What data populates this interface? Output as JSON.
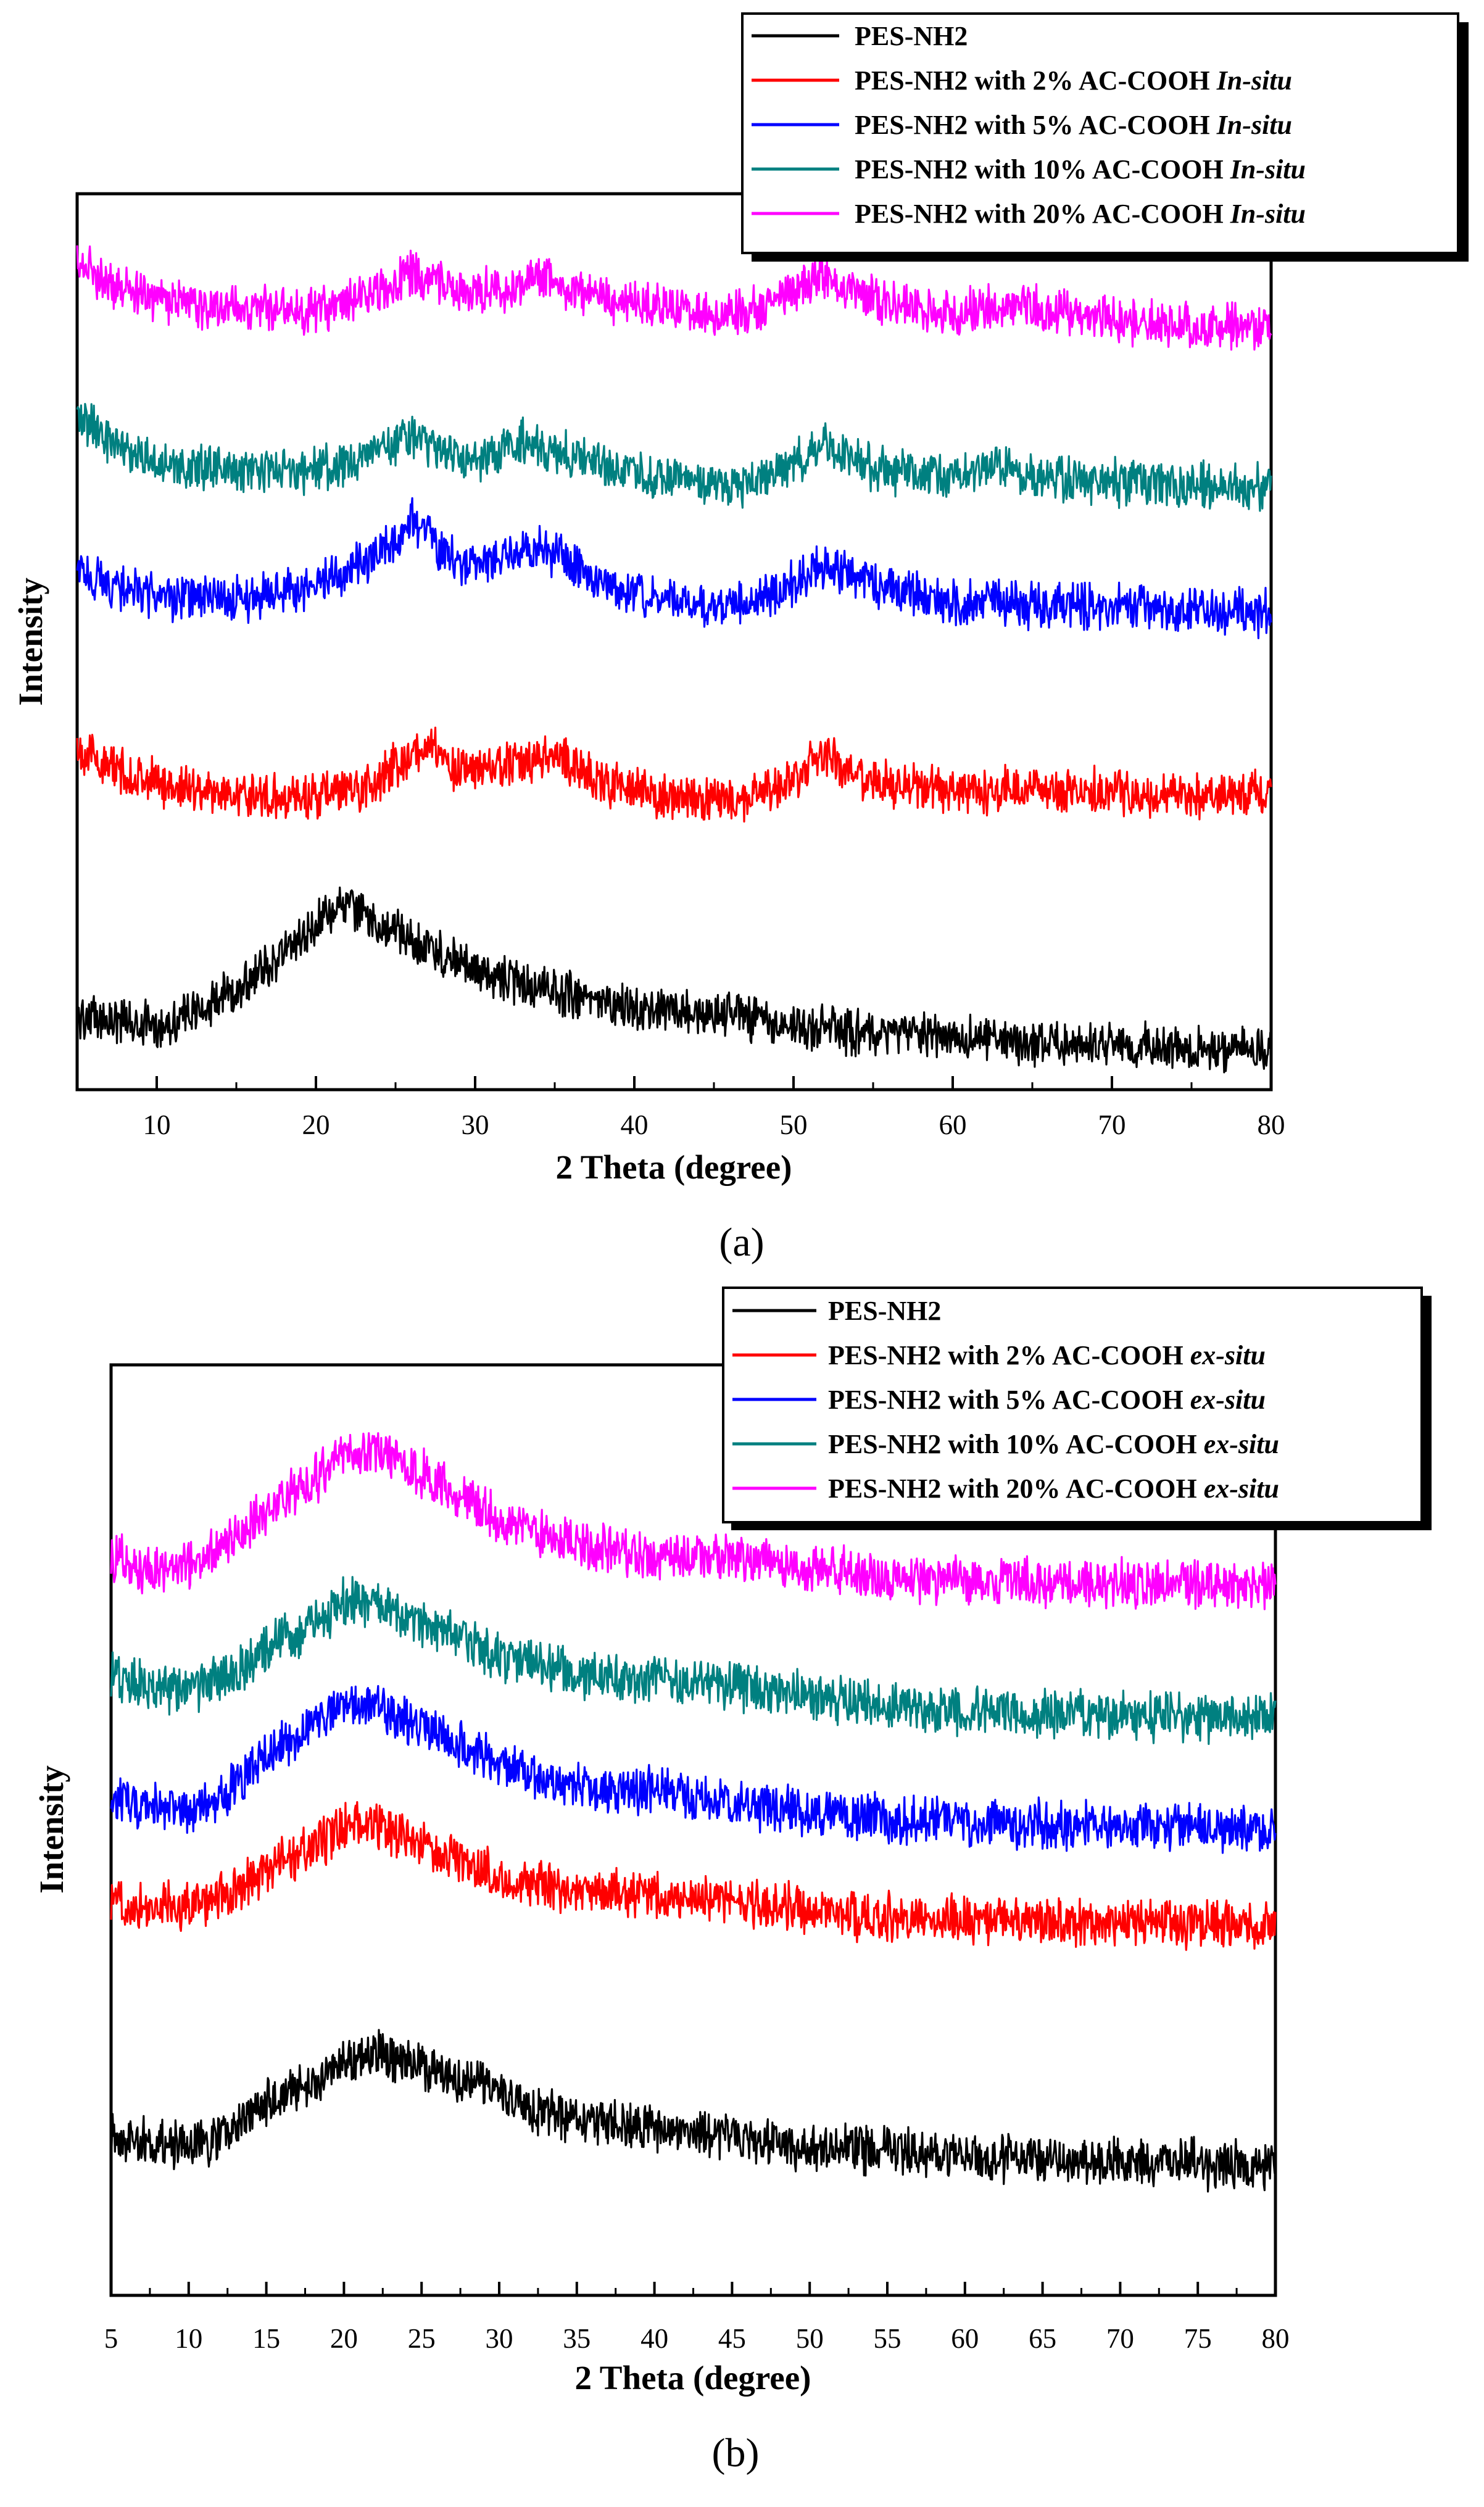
{
  "chart_data": [
    {
      "panel": "a",
      "type": "line",
      "caption": "(a)",
      "xlabel": "2 Theta (degree)",
      "ylabel": "Intensity",
      "xlim": [
        5,
        80
      ],
      "xticks": [
        10,
        20,
        30,
        40,
        50,
        60,
        70,
        80
      ],
      "yticks_shown": false,
      "legend_position": "top-right",
      "legend_style": "italic-suffix",
      "series": [
        {
          "name": "PES-NH2",
          "suffix": "",
          "color": "#000000",
          "x": [
            5,
            7,
            10,
            13,
            16,
            19,
            21,
            22,
            24,
            27,
            30,
            33,
            36,
            40,
            45,
            50,
            55,
            60,
            65,
            70,
            75,
            80
          ],
          "y": [
            0.42,
            0.38,
            0.33,
            0.48,
            0.75,
            1.12,
            1.38,
            1.42,
            1.24,
            1.03,
            0.82,
            0.7,
            0.6,
            0.5,
            0.45,
            0.33,
            0.26,
            0.22,
            0.18,
            0.14,
            0.13,
            0.12
          ]
        },
        {
          "name": "PES-NH2 with 2% AC-COOH ",
          "suffix": "In-situ",
          "color": "#ff0000",
          "x": [
            5,
            7,
            10,
            15,
            18,
            20,
            23,
            25,
            27,
            29,
            31,
            33,
            35,
            38,
            42,
            47,
            50,
            52,
            54,
            57,
            60,
            65,
            70,
            75,
            80
          ],
          "y": [
            2.85,
            2.66,
            2.52,
            2.42,
            2.4,
            2.4,
            2.47,
            2.68,
            2.86,
            2.62,
            2.66,
            2.72,
            2.78,
            2.52,
            2.4,
            2.36,
            2.55,
            2.78,
            2.58,
            2.48,
            2.47,
            2.46,
            2.45,
            2.42,
            2.42
          ]
        },
        {
          "name": "PES-NH2 with 5% AC-COOH ",
          "suffix": "In-situ",
          "color": "#0000ff",
          "x": [
            5,
            7,
            10,
            15,
            20,
            23,
            25,
            26,
            28,
            30,
            33,
            35,
            38,
            42,
            46,
            50,
            52,
            55,
            60,
            65,
            70,
            75,
            80
          ],
          "y": [
            4.45,
            4.32,
            4.2,
            4.18,
            4.32,
            4.5,
            4.72,
            4.92,
            4.62,
            4.48,
            4.66,
            4.6,
            4.32,
            4.18,
            4.1,
            4.32,
            4.5,
            4.32,
            4.15,
            4.14,
            4.12,
            4.08,
            4.06
          ]
        },
        {
          "name": "PES-NH2 with 10% AC-COOH ",
          "suffix": "In-situ",
          "color": "#008080",
          "x": [
            5,
            7,
            10,
            15,
            20,
            24,
            26,
            28,
            30,
            33,
            35,
            38,
            42,
            47,
            50,
            52,
            55,
            60,
            63,
            66,
            70,
            75,
            80
          ],
          "y": [
            5.85,
            5.62,
            5.42,
            5.35,
            5.35,
            5.52,
            5.66,
            5.55,
            5.42,
            5.62,
            5.52,
            5.38,
            5.28,
            5.22,
            5.42,
            5.58,
            5.36,
            5.28,
            5.36,
            5.28,
            5.24,
            5.22,
            5.2
          ]
        },
        {
          "name": "PES-NH2 with 20% AC-COOH ",
          "suffix": "In-situ",
          "color": "#ff00ff",
          "x": [
            5,
            7,
            10,
            15,
            20,
            23,
            26,
            28,
            30,
            32,
            34,
            36,
            40,
            45,
            48,
            50,
            52,
            55,
            60,
            64,
            68,
            72,
            76,
            80
          ],
          "y": [
            7.28,
            7.02,
            6.9,
            6.8,
            6.8,
            6.92,
            7.12,
            7.05,
            6.95,
            7.0,
            7.1,
            6.95,
            6.85,
            6.76,
            6.82,
            6.98,
            7.1,
            6.9,
            6.78,
            6.85,
            6.74,
            6.68,
            6.66,
            6.62
          ]
        }
      ]
    },
    {
      "panel": "b",
      "type": "line",
      "caption": "(b)",
      "xlabel": "2 Theta (degree)",
      "ylabel": "Intensity",
      "xlim": [
        5,
        80
      ],
      "xticks": [
        5,
        10,
        15,
        20,
        25,
        30,
        35,
        40,
        45,
        50,
        55,
        60,
        65,
        70,
        75,
        80
      ],
      "yticks_shown": false,
      "legend_position": "top-right",
      "legend_style": "italic-suffix",
      "series": [
        {
          "name": "PES-NH2",
          "suffix": "",
          "color": "#000000",
          "x": [
            5,
            7,
            10,
            13,
            15,
            18,
            20,
            22,
            24,
            27,
            30,
            33,
            36,
            40,
            45,
            50,
            55,
            60,
            65,
            70,
            75,
            80
          ],
          "y": [
            0.32,
            0.28,
            0.22,
            0.38,
            0.6,
            0.75,
            0.95,
            1.05,
            0.95,
            0.82,
            0.68,
            0.52,
            0.45,
            0.38,
            0.32,
            0.22,
            0.18,
            0.14,
            0.12,
            0.1,
            0.08,
            0.06
          ]
        },
        {
          "name": "PES-NH2 with 2% AC-COOH ",
          "suffix": "ex-situ",
          "color": "#ff0000",
          "x": [
            5,
            7,
            10,
            13,
            15,
            18,
            20,
            22,
            24,
            27,
            30,
            35,
            40,
            45,
            50,
            55,
            60,
            65,
            70,
            75,
            80
          ],
          "y": [
            2.35,
            2.3,
            2.3,
            2.42,
            2.6,
            2.8,
            3.0,
            2.98,
            2.88,
            2.72,
            2.55,
            2.42,
            2.38,
            2.35,
            2.25,
            2.2,
            2.18,
            2.16,
            2.15,
            2.14,
            2.12
          ]
        },
        {
          "name": "PES-NH2 with 5% AC-COOH ",
          "suffix": "ex-situ",
          "color": "#0000ff",
          "x": [
            5,
            7,
            10,
            13,
            15,
            18,
            20,
            22,
            24,
            27,
            30,
            33,
            36,
            40,
            45,
            50,
            55,
            60,
            65,
            70,
            75,
            80
          ],
          "y": [
            3.25,
            3.15,
            3.1,
            3.3,
            3.6,
            3.85,
            4.0,
            4.02,
            3.92,
            3.72,
            3.52,
            3.38,
            3.3,
            3.28,
            3.2,
            3.1,
            3.05,
            3.02,
            3.0,
            2.98,
            2.97,
            2.95
          ]
        },
        {
          "name": "PES-NH2 with 10% AC-COOH ",
          "suffix": "ex-situ",
          "color": "#008080",
          "x": [
            5,
            7,
            10,
            13,
            15,
            18,
            20,
            22,
            24,
            27,
            30,
            35,
            40,
            45,
            50,
            55,
            60,
            65,
            70,
            75,
            80
          ],
          "y": [
            4.3,
            4.2,
            4.15,
            4.3,
            4.52,
            4.72,
            4.9,
            4.9,
            4.8,
            4.62,
            4.45,
            4.3,
            4.22,
            4.2,
            4.1,
            4.02,
            3.98,
            3.95,
            3.93,
            3.92,
            3.9
          ]
        },
        {
          "name": "PES-NH2 with 20% AC-COOH ",
          "suffix": "ex-situ",
          "color": "#ff00ff",
          "x": [
            5,
            7,
            10,
            13,
            15,
            18,
            20,
            22,
            24,
            27,
            30,
            35,
            40,
            45,
            50,
            55,
            60,
            65,
            70,
            75,
            80
          ],
          "y": [
            5.3,
            5.2,
            5.22,
            5.45,
            5.7,
            5.95,
            6.15,
            6.2,
            6.1,
            5.85,
            5.62,
            5.42,
            5.32,
            5.3,
            5.2,
            5.12,
            5.1,
            5.08,
            5.07,
            5.05,
            5.05
          ]
        }
      ]
    }
  ]
}
